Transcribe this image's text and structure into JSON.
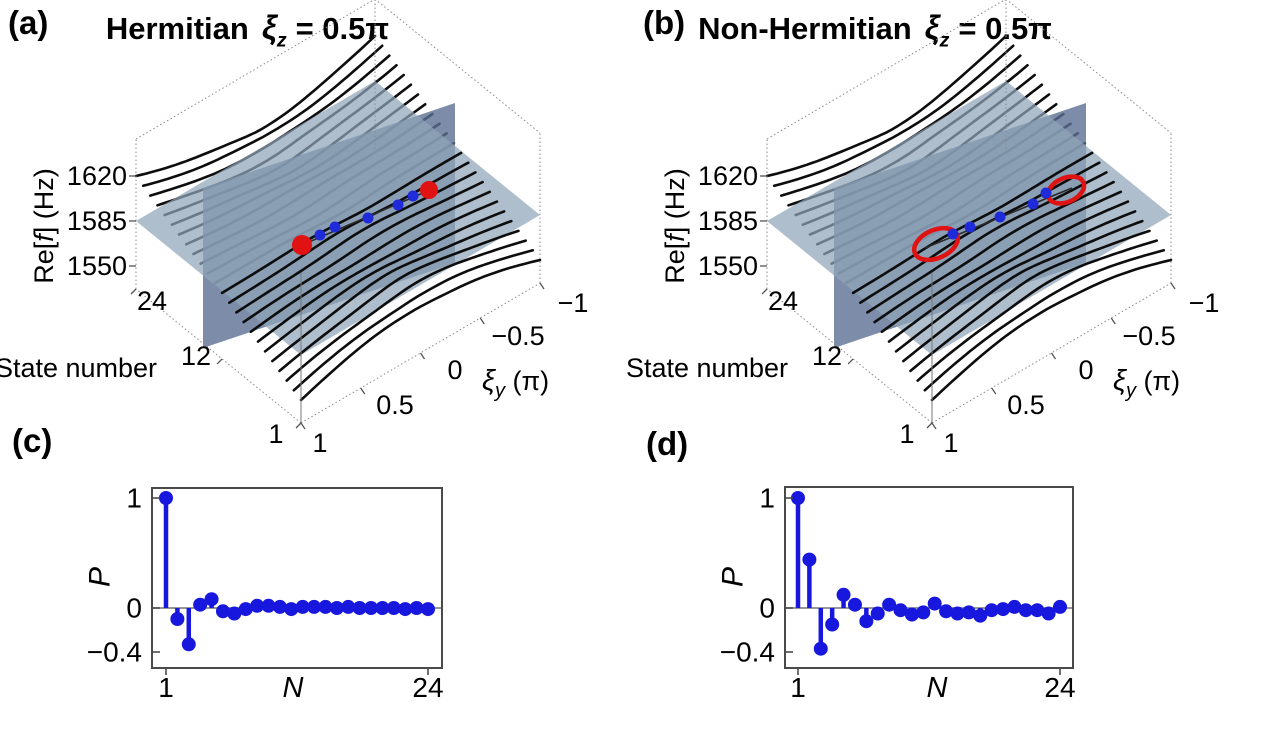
{
  "figure": {
    "background": "#ffffff"
  },
  "colors": {
    "band": "#0d0d0d",
    "plane_vertical": "#5d7094",
    "plane_horizontal": "#8fa5b8",
    "box_line": "#8a8a8a",
    "tick_line": "#555555",
    "frame": "#4a4a4a",
    "zero_line": "#737373",
    "stem_blue": "#1717dd",
    "dot_blue": "#1f2ad8",
    "red": "#e01212",
    "center_line": "#2b2b2b"
  },
  "panels": {
    "a": {
      "label": "(a)",
      "title": {
        "prefix": "Hermitian",
        "xi": "ξ",
        "sub": "z",
        "eq": "= 0.5π"
      },
      "markers": {
        "line": [
          [
            295,
            248
          ],
          [
            437,
            187
          ]
        ],
        "red": [
          [
            302,
            245,
            10
          ],
          [
            429,
            190,
            9
          ]
        ],
        "blue": [
          [
            320,
            235
          ],
          [
            335,
            227
          ],
          [
            368,
            218
          ],
          [
            398,
            205
          ],
          [
            413,
            196
          ]
        ]
      }
    },
    "b": {
      "label": "(b)",
      "title": {
        "prefix": "Non-Hermitian",
        "xi": "ξ",
        "sub": "z",
        "eq": "= 0.5π"
      },
      "markers": {
        "line": [
          [
            294,
            248
          ],
          [
            441,
            188
          ]
        ],
        "rings": [
          [
            305,
            244,
            23,
            14
          ],
          [
            435,
            190,
            19,
            12
          ]
        ],
        "blue": [
          [
            322,
            234
          ],
          [
            339,
            227
          ],
          [
            369,
            217
          ],
          [
            402,
            204
          ],
          [
            415,
            193
          ]
        ]
      }
    },
    "c": {
      "label": "(c)",
      "ylabel": "P",
      "xlabel": "N",
      "yticks": [
        "1",
        "0",
        "−0.4"
      ],
      "xticks": [
        "1",
        "24"
      ]
    },
    "d": {
      "label": "(d)",
      "ylabel": "P",
      "xlabel": "N",
      "yticks": [
        "1",
        "0",
        "−0.4"
      ],
      "xticks": [
        "1",
        "24"
      ]
    }
  },
  "axes3d": {
    "freq_label": [
      "Re[",
      "f",
      "] (Hz)"
    ],
    "freq_ticks": [
      "1620",
      "1585",
      "1550"
    ],
    "state_label": "State number",
    "state_ticks": [
      "24",
      "12",
      "1"
    ],
    "xi_ticks": [
      "1",
      "0.5",
      "0",
      "−0.5",
      "−1"
    ],
    "xi_label": {
      "sym": "ξ",
      "sub": "y",
      "unit": " (π)"
    }
  },
  "chart_data": [
    {
      "id": "a",
      "type": "line",
      "plot_kind": "3d-band-structure",
      "title": "Hermitian ξz = 0.5π",
      "xlabel": "ξy (π)",
      "x_range": [
        1,
        -1
      ],
      "x_ticks": [
        1,
        0.5,
        0,
        -0.5,
        -1
      ],
      "ylabel": "State number",
      "y_ticks": [
        24,
        12,
        1
      ],
      "y_range": [
        1,
        24
      ],
      "zlabel": "Re[f] (Hz)",
      "z_ticks": [
        1550,
        1585,
        1620
      ],
      "n_bands": 24,
      "band_center_hz": 1585,
      "band_spread_hz": 35,
      "planes": [
        "horizontal plane at Re[f] = 1585 Hz",
        "vertical plane through band center"
      ],
      "markers": {
        "blue_dots": 5,
        "red_dots": 2
      },
      "legend": "none",
      "grid": false
    },
    {
      "id": "b",
      "type": "line",
      "plot_kind": "3d-band-structure",
      "title": "Non-Hermitian ξz = 0.5π",
      "xlabel": "ξy (π)",
      "x_range": [
        1,
        -1
      ],
      "x_ticks": [
        1,
        0.5,
        0,
        -0.5,
        -1
      ],
      "ylabel": "State number",
      "y_ticks": [
        24,
        12,
        1
      ],
      "y_range": [
        1,
        24
      ],
      "zlabel": "Re[f] (Hz)",
      "z_ticks": [
        1550,
        1585,
        1620
      ],
      "n_bands": 24,
      "band_center_hz": 1585,
      "band_spread_hz": 35,
      "planes": [
        "horizontal plane at Re[f] = 1585 Hz",
        "vertical plane through band center"
      ],
      "markers": {
        "blue_dots": 5,
        "red_rings": 2
      },
      "legend": "none",
      "grid": false
    },
    {
      "id": "c",
      "type": "stem",
      "xlabel": "N",
      "ylabel": "P",
      "x_ticks": [
        1,
        24
      ],
      "y_ticks": [
        1,
        0,
        -0.4
      ],
      "ylim": [
        -0.54,
        1.09
      ],
      "N": [
        1,
        2,
        3,
        4,
        5,
        6,
        7,
        8,
        9,
        10,
        11,
        12,
        13,
        14,
        15,
        16,
        17,
        18,
        19,
        20,
        21,
        22,
        23,
        24
      ],
      "values": [
        1.0,
        -0.1,
        -0.33,
        0.03,
        0.08,
        -0.03,
        -0.05,
        -0.01,
        0.02,
        0.02,
        0.01,
        -0.01,
        0.01,
        0.01,
        0.01,
        0.0,
        0.01,
        0.0,
        0.0,
        0.0,
        0.0,
        -0.01,
        0.0,
        -0.01
      ]
    },
    {
      "id": "d",
      "type": "stem",
      "xlabel": "N",
      "ylabel": "P",
      "x_ticks": [
        1,
        24
      ],
      "y_ticks": [
        1,
        0,
        -0.4
      ],
      "ylim": [
        -0.54,
        1.09
      ],
      "N": [
        1,
        2,
        3,
        4,
        5,
        6,
        7,
        8,
        9,
        10,
        11,
        12,
        13,
        14,
        15,
        16,
        17,
        18,
        19,
        20,
        21,
        22,
        23,
        24
      ],
      "values": [
        1.0,
        0.44,
        -0.37,
        -0.15,
        0.12,
        0.03,
        -0.12,
        -0.05,
        0.03,
        -0.02,
        -0.06,
        -0.04,
        0.04,
        -0.03,
        -0.05,
        -0.04,
        -0.07,
        -0.02,
        -0.01,
        0.01,
        -0.02,
        -0.02,
        -0.05,
        0.01
      ]
    }
  ]
}
